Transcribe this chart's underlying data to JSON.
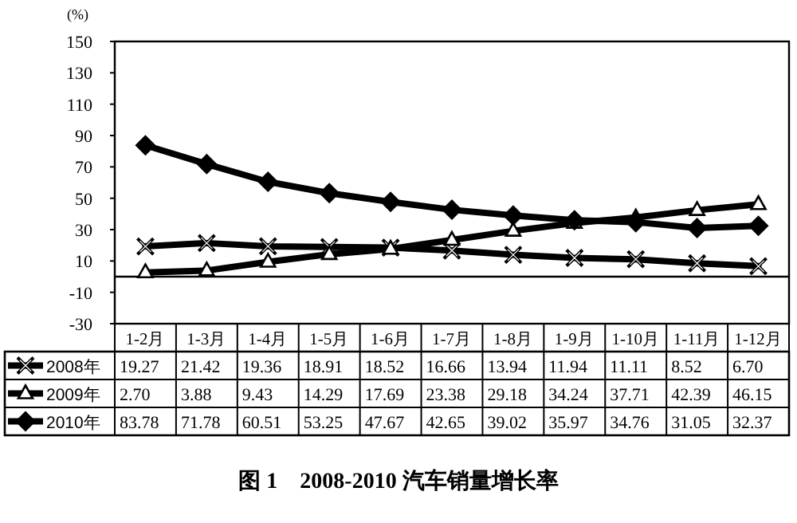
{
  "chart_data": {
    "type": "line",
    "title": "图 1　2008-2010 汽车销量增长率",
    "ylabel": "(%)",
    "categories": [
      "1-2月",
      "1-3月",
      "1-4月",
      "1-5月",
      "1-6月",
      "1-7月",
      "1-8月",
      "1-9月",
      "1-10月",
      "1-11月",
      "1-12月"
    ],
    "series": [
      {
        "name": "2008年",
        "color": "#000000",
        "marker": "cross",
        "values": [
          19.27,
          21.42,
          19.36,
          18.91,
          18.52,
          16.66,
          13.94,
          11.94,
          11.11,
          8.52,
          6.7
        ],
        "value_labels": [
          "19.27",
          "21.42",
          "19.36",
          "18.91",
          "18.52",
          "16.66",
          "13.94",
          "11.94",
          "11.11",
          "8.52",
          "6.70"
        ]
      },
      {
        "name": "2009年",
        "color": "#000000",
        "marker": "triangle",
        "values": [
          2.7,
          3.88,
          9.43,
          14.29,
          17.69,
          23.38,
          29.18,
          34.24,
          37.71,
          42.39,
          46.15
        ],
        "value_labels": [
          "2.70",
          "3.88",
          "9.43",
          "14.29",
          "17.69",
          "23.38",
          "29.18",
          "34.24",
          "37.71",
          "42.39",
          "46.15"
        ]
      },
      {
        "name": "2010年",
        "color": "#000000",
        "marker": "diamond",
        "values": [
          83.78,
          71.78,
          60.51,
          53.25,
          47.67,
          42.65,
          39.02,
          35.97,
          34.76,
          31.05,
          32.37
        ],
        "value_labels": [
          "83.78",
          "71.78",
          "60.51",
          "53.25",
          "47.67",
          "42.65",
          "39.02",
          "35.97",
          "34.76",
          "31.05",
          "32.37"
        ]
      }
    ],
    "ylim": [
      -30,
      150
    ],
    "yticks": [
      150,
      130,
      110,
      90,
      70,
      50,
      30,
      10,
      -10,
      -30
    ],
    "grid": false,
    "legend": "bottom",
    "line_style": "solid"
  }
}
